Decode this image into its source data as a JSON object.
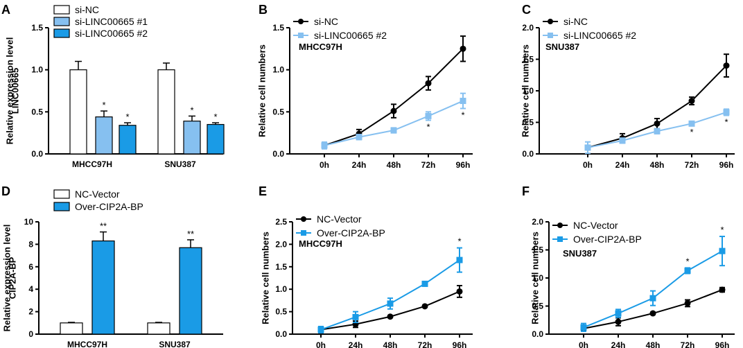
{
  "colors": {
    "black": "#000000",
    "light_blue": "#86c0f0",
    "blue": "#1a9be6",
    "white": "#ffffff"
  },
  "chart_data": [
    {
      "panel": "A",
      "type": "bar",
      "ylabel_lines": [
        "Relative expression level",
        "LINC00665"
      ],
      "categories": [
        "MHCC97H",
        "SNU387"
      ],
      "ylim": [
        0,
        1.5
      ],
      "yticks": [
        0.0,
        0.5,
        1.0,
        1.5
      ],
      "series": [
        {
          "name": "si-NC",
          "fill": "#ffffff",
          "values": [
            1.0,
            1.0
          ],
          "errors": [
            0.1,
            0.08
          ],
          "stars": [
            "",
            ""
          ]
        },
        {
          "name": "si-LINC00665 #1",
          "fill": "#86c0f0",
          "values": [
            0.44,
            0.39
          ],
          "errors": [
            0.07,
            0.06
          ],
          "stars": [
            "*",
            "*"
          ]
        },
        {
          "name": "si-LINC00665 #2",
          "fill": "#1a9be6",
          "values": [
            0.34,
            0.35
          ],
          "errors": [
            0.03,
            0.02
          ],
          "stars": [
            "*",
            "*"
          ]
        }
      ]
    },
    {
      "panel": "B",
      "type": "line",
      "ylabel_lines": [
        "Relative cell numbers"
      ],
      "annotation": "MHCC97H",
      "x": [
        "0h",
        "24h",
        "48h",
        "72h",
        "96h"
      ],
      "ylim": [
        0,
        1.5
      ],
      "yticks": [
        0.0,
        0.5,
        1.0,
        1.5
      ],
      "series": [
        {
          "name": "si-NC",
          "color": "#000000",
          "marker": "circle",
          "values": [
            0.1,
            0.24,
            0.51,
            0.84,
            1.25
          ],
          "errors": [
            0.03,
            0.05,
            0.08,
            0.08,
            0.15
          ]
        },
        {
          "name": "si-LINC00665 #2",
          "color": "#86c0f0",
          "marker": "square",
          "values": [
            0.1,
            0.2,
            0.28,
            0.45,
            0.63
          ],
          "errors": [
            0.04,
            0.03,
            0.03,
            0.05,
            0.09
          ]
        }
      ],
      "stars": [
        "",
        "",
        "",
        "*",
        "*"
      ]
    },
    {
      "panel": "C",
      "type": "line",
      "ylabel_lines": [
        "Relative cell numbers"
      ],
      "annotation": "SNU387",
      "x": [
        "0h",
        "24h",
        "48h",
        "72h",
        "96h"
      ],
      "ylim": [
        0,
        2.0
      ],
      "yticks": [
        0.0,
        0.5,
        1.0,
        1.5,
        2.0
      ],
      "series": [
        {
          "name": "si-NC",
          "color": "#000000",
          "marker": "circle",
          "values": [
            0.1,
            0.25,
            0.48,
            0.84,
            1.4
          ],
          "errors": [
            0.03,
            0.07,
            0.08,
            0.06,
            0.18
          ]
        },
        {
          "name": "si-LINC00665 #2",
          "color": "#86c0f0",
          "marker": "square",
          "values": [
            0.1,
            0.21,
            0.36,
            0.48,
            0.66
          ],
          "errors": [
            0.09,
            0.04,
            0.04,
            0.03,
            0.05
          ]
        }
      ],
      "stars": [
        "",
        "",
        "",
        "*",
        "*"
      ]
    },
    {
      "panel": "D",
      "type": "bar",
      "ylabel_lines": [
        "Relative expression level",
        "CIP2A-BP"
      ],
      "categories": [
        "MHCC97H",
        "SNU387"
      ],
      "ylim": [
        0,
        10
      ],
      "yticks": [
        0,
        2,
        4,
        6,
        8,
        10
      ],
      "series": [
        {
          "name": "NC-Vector",
          "fill": "#ffffff",
          "values": [
            1.0,
            1.0
          ],
          "errors": [
            0.05,
            0.05
          ],
          "stars": [
            "",
            ""
          ]
        },
        {
          "name": "Over-CIP2A-BP",
          "fill": "#1a9be6",
          "values": [
            8.3,
            7.7
          ],
          "errors": [
            0.8,
            0.7
          ],
          "stars": [
            "**",
            "**"
          ]
        }
      ]
    },
    {
      "panel": "E",
      "type": "line",
      "ylabel_lines": [
        "Relative cell numbers"
      ],
      "annotation": "MHCC97H",
      "x": [
        "0h",
        "24h",
        "48h",
        "72h",
        "96h"
      ],
      "ylim": [
        0,
        2.5
      ],
      "yticks": [
        0.0,
        0.5,
        1.0,
        1.5,
        2.0,
        2.5
      ],
      "series": [
        {
          "name": "NC-Vector",
          "color": "#000000",
          "marker": "circle",
          "values": [
            0.1,
            0.22,
            0.39,
            0.62,
            0.95
          ],
          "errors": [
            0.03,
            0.07,
            0.02,
            0.02,
            0.13
          ]
        },
        {
          "name": "Over-CIP2A-BP",
          "color": "#1a9be6",
          "marker": "square",
          "values": [
            0.1,
            0.38,
            0.68,
            1.12,
            1.65
          ],
          "errors": [
            0.07,
            0.12,
            0.12,
            0.03,
            0.27
          ]
        }
      ],
      "stars": [
        "",
        "",
        "",
        "",
        "*"
      ]
    },
    {
      "panel": "F",
      "type": "line",
      "ylabel_lines": [
        "Relative cell numbers"
      ],
      "annotation": "SNU387",
      "x": [
        "0h",
        "24h",
        "48h",
        "72h",
        "96h"
      ],
      "ylim": [
        0,
        2.0
      ],
      "yticks": [
        0.0,
        0.5,
        1.0,
        1.5,
        2.0
      ],
      "series": [
        {
          "name": "NC-Vector",
          "color": "#000000",
          "marker": "circle",
          "values": [
            0.1,
            0.22,
            0.37,
            0.55,
            0.79
          ],
          "errors": [
            0.03,
            0.07,
            0.02,
            0.06,
            0.04
          ]
        },
        {
          "name": "Over-CIP2A-BP",
          "color": "#1a9be6",
          "marker": "square",
          "values": [
            0.12,
            0.37,
            0.64,
            1.13,
            1.48
          ],
          "errors": [
            0.07,
            0.07,
            0.13,
            0.05,
            0.26
          ]
        }
      ],
      "stars": [
        "",
        "",
        "",
        "*",
        "*"
      ]
    }
  ]
}
